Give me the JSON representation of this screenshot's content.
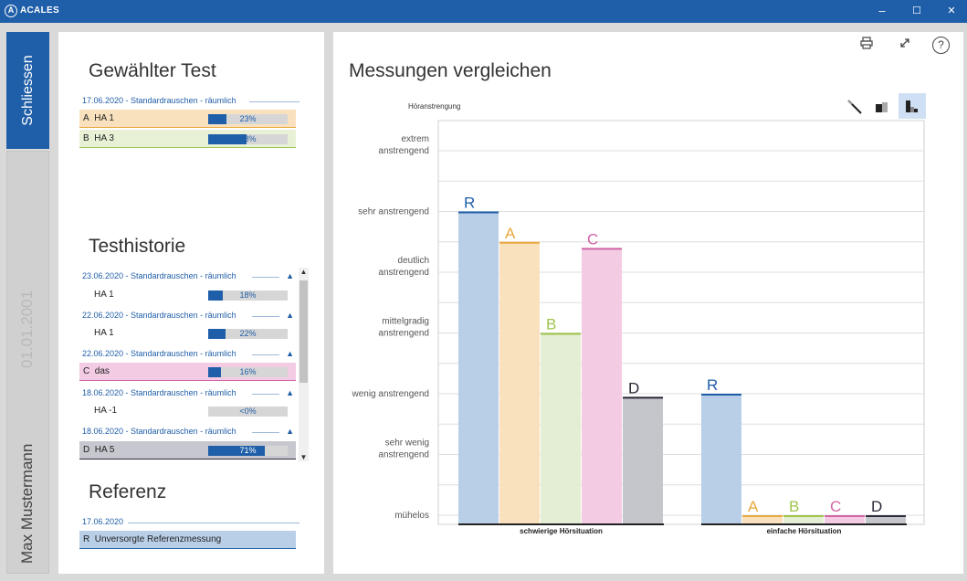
{
  "app": {
    "title": "ACALES",
    "logo_icon": "acales-logo-icon"
  },
  "window": {
    "minimize": "–",
    "maximize": "☐",
    "close": "✕"
  },
  "tabs": {
    "close_label": "Schliessen",
    "user_name": "Max Mustermann",
    "user_date": "01.01.2001"
  },
  "selected_test": {
    "title": "Gewählter Test",
    "group_label": "17.06.2020 - Standardrauschen - räumlich",
    "rows": [
      {
        "letter": "A",
        "name": "HA 1",
        "percent": "23%",
        "fraction": 0.23
      },
      {
        "letter": "B",
        "name": "HA 3",
        "percent": "48%",
        "fraction": 0.48
      }
    ]
  },
  "history": {
    "title": "Testhistorie",
    "groups": [
      {
        "label": "23.06.2020 - Standardrauschen - räumlich",
        "row": {
          "letter": "",
          "name": "HA 1",
          "percent": "18%",
          "fraction": 0.18
        }
      },
      {
        "label": "22.06.2020 - Standardrauschen - räumlich",
        "row": {
          "letter": "",
          "name": "HA 1",
          "percent": "22%",
          "fraction": 0.22
        }
      },
      {
        "label": "22.06.2020 - Standardrauschen - räumlich",
        "row": {
          "letter": "C",
          "name": "das",
          "percent": "16%",
          "fraction": 0.16
        }
      },
      {
        "label": "18.06.2020 - Standardrauschen - räumlich",
        "row": {
          "letter": "",
          "name": "HA -1",
          "percent": "<0%",
          "fraction": 0.0
        }
      },
      {
        "label": "18.06.2020 - Standardrauschen - räumlich",
        "row": {
          "letter": "D",
          "name": "HA 5",
          "percent": "71%",
          "fraction": 0.71
        }
      }
    ]
  },
  "reference": {
    "title": "Referenz",
    "group_label": "17.06.2020",
    "row": {
      "letter": "R",
      "name": "Unversorgte Referenzmessung"
    }
  },
  "toolbar": {
    "print_icon": "printer-icon",
    "expand_icon": "expand-icon",
    "help": "?"
  },
  "chart_view_buttons": [
    "line-view-icon",
    "single-bar-view-icon",
    "grouped-bar-view-icon"
  ],
  "colors": {
    "R": "#1f5ea8",
    "A": "#e9a93e",
    "B": "#9fc44a",
    "C": "#d064a6",
    "D": "#2a2a3a",
    "accent": "#1f5ea8"
  },
  "fill_colors": {
    "R": "#b9cfe8",
    "A": "#f9e1bd",
    "B": "#e4eed4",
    "C": "#f3cce4",
    "D": "#c5c5cc"
  },
  "chart_data": {
    "type": "bar",
    "title": "Messungen vergleichen",
    "ylabel": "Höranstrengung",
    "y_ticks": [
      {
        "value": 1,
        "label": [
          "mühelos"
        ]
      },
      {
        "value": 2,
        "label": [
          "sehr wenig",
          "anstrengend"
        ]
      },
      {
        "value": 3,
        "label": [
          "wenig anstrengend"
        ]
      },
      {
        "value": 4,
        "label": [
          "mittelgradig",
          "anstrengend"
        ]
      },
      {
        "value": 5,
        "label": [
          "deutlich",
          "anstrengend"
        ]
      },
      {
        "value": 6,
        "label": [
          "sehr anstrengend"
        ]
      },
      {
        "value": 7,
        "label": [
          "extrem",
          "anstrengend"
        ]
      }
    ],
    "ylim": [
      1,
      7.6
    ],
    "categories": [
      "schwierige Hörsituation",
      "einfache Hörsituation"
    ],
    "series": [
      {
        "name": "R",
        "values": [
          6.0,
          3.0
        ]
      },
      {
        "name": "A",
        "values": [
          5.5,
          1.0
        ]
      },
      {
        "name": "B",
        "values": [
          4.0,
          1.0
        ]
      },
      {
        "name": "C",
        "values": [
          5.4,
          1.0
        ]
      },
      {
        "name": "D",
        "values": [
          2.95,
          1.0
        ]
      }
    ],
    "grid": true
  }
}
